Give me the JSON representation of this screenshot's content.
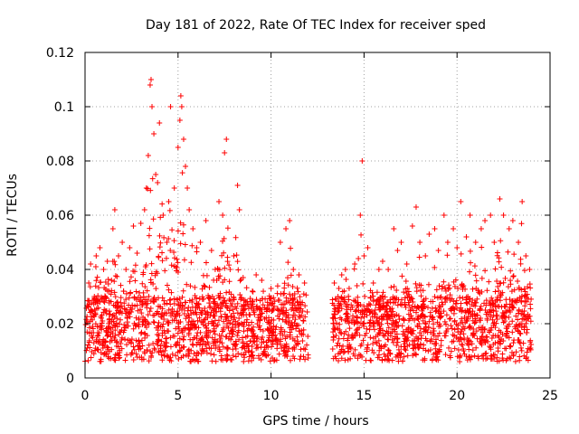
{
  "chart_data": {
    "type": "scatter",
    "title": "Day 181 of 2022, Rate Of TEC Index for receiver sped",
    "xlabel": "GPS time / hours",
    "ylabel": "ROTI / TECUs",
    "xlim": [
      0,
      25
    ],
    "ylim": [
      0,
      0.12
    ],
    "x_ticks": [
      "0",
      "5",
      "10",
      "15",
      "20",
      "25"
    ],
    "y_ticks": [
      "0",
      "0.02",
      "0.04",
      "0.06",
      "0.08",
      "0.1",
      "0.12"
    ],
    "grid": true,
    "marker": "+",
    "color": "#ff0000",
    "data_gap_hours": [
      12.0,
      13.3
    ],
    "series": [
      {
        "points": [
          [
            0.1,
            0.021
          ],
          [
            0.2,
            0.035
          ],
          [
            0.3,
            0.042
          ],
          [
            0.5,
            0.03
          ],
          [
            0.6,
            0.045
          ],
          [
            0.8,
            0.048
          ],
          [
            1.0,
            0.04
          ],
          [
            1.2,
            0.043
          ],
          [
            1.5,
            0.055
          ],
          [
            1.6,
            0.062
          ],
          [
            1.8,
            0.045
          ],
          [
            2.0,
            0.05
          ],
          [
            2.2,
            0.04
          ],
          [
            2.4,
            0.048
          ],
          [
            2.6,
            0.056
          ],
          [
            2.8,
            0.046
          ],
          [
            3.0,
            0.057
          ],
          [
            3.2,
            0.062
          ],
          [
            3.3,
            0.07
          ],
          [
            3.4,
            0.082
          ],
          [
            3.5,
            0.108
          ],
          [
            3.55,
            0.11
          ],
          [
            3.6,
            0.1
          ],
          [
            3.7,
            0.09
          ],
          [
            3.8,
            0.075
          ],
          [
            3.9,
            0.072
          ],
          [
            4.0,
            0.094
          ],
          [
            4.2,
            0.06
          ],
          [
            4.4,
            0.05
          ],
          [
            4.5,
            0.065
          ],
          [
            4.6,
            0.1
          ],
          [
            4.8,
            0.07
          ],
          [
            5.0,
            0.085
          ],
          [
            5.1,
            0.095
          ],
          [
            5.15,
            0.104
          ],
          [
            5.2,
            0.1
          ],
          [
            5.3,
            0.088
          ],
          [
            5.4,
            0.078
          ],
          [
            5.5,
            0.07
          ],
          [
            5.6,
            0.062
          ],
          [
            5.8,
            0.055
          ],
          [
            6.0,
            0.048
          ],
          [
            6.2,
            0.05
          ],
          [
            6.5,
            0.058
          ],
          [
            6.8,
            0.047
          ],
          [
            7.0,
            0.04
          ],
          [
            7.2,
            0.065
          ],
          [
            7.4,
            0.06
          ],
          [
            7.5,
            0.083
          ],
          [
            7.6,
            0.088
          ],
          [
            7.8,
            0.04
          ],
          [
            8.0,
            0.045
          ],
          [
            8.2,
            0.071
          ],
          [
            8.3,
            0.062
          ],
          [
            8.5,
            0.037
          ],
          [
            9.0,
            0.032
          ],
          [
            9.2,
            0.038
          ],
          [
            9.5,
            0.036
          ],
          [
            10.0,
            0.033
          ],
          [
            10.5,
            0.05
          ],
          [
            10.8,
            0.055
          ],
          [
            11.0,
            0.058
          ],
          [
            11.2,
            0.04
          ],
          [
            11.5,
            0.038
          ],
          [
            11.8,
            0.035
          ],
          [
            13.4,
            0.035
          ],
          [
            13.6,
            0.03
          ],
          [
            13.8,
            0.038
          ],
          [
            14.0,
            0.04
          ],
          [
            14.2,
            0.033
          ],
          [
            14.5,
            0.042
          ],
          [
            14.8,
            0.06
          ],
          [
            14.9,
            0.08
          ],
          [
            15.0,
            0.045
          ],
          [
            15.2,
            0.048
          ],
          [
            15.5,
            0.035
          ],
          [
            15.8,
            0.04
          ],
          [
            16.0,
            0.043
          ],
          [
            16.3,
            0.04
          ],
          [
            16.6,
            0.055
          ],
          [
            16.8,
            0.047
          ],
          [
            17.0,
            0.05
          ],
          [
            17.3,
            0.042
          ],
          [
            17.6,
            0.056
          ],
          [
            17.8,
            0.063
          ],
          [
            18.0,
            0.05
          ],
          [
            18.3,
            0.045
          ],
          [
            18.5,
            0.053
          ],
          [
            18.8,
            0.055
          ],
          [
            19.0,
            0.047
          ],
          [
            19.3,
            0.06
          ],
          [
            19.5,
            0.05
          ],
          [
            19.8,
            0.055
          ],
          [
            20.0,
            0.048
          ],
          [
            20.2,
            0.065
          ],
          [
            20.5,
            0.052
          ],
          [
            20.7,
            0.06
          ],
          [
            21.0,
            0.05
          ],
          [
            21.3,
            0.055
          ],
          [
            21.5,
            0.058
          ],
          [
            21.8,
            0.06
          ],
          [
            22.0,
            0.05
          ],
          [
            22.3,
            0.066
          ],
          [
            22.5,
            0.06
          ],
          [
            22.8,
            0.055
          ],
          [
            23.0,
            0.058
          ],
          [
            23.3,
            0.05
          ],
          [
            23.5,
            0.065
          ],
          [
            23.7,
            0.045
          ],
          [
            23.9,
            0.04
          ]
        ]
      }
    ]
  }
}
